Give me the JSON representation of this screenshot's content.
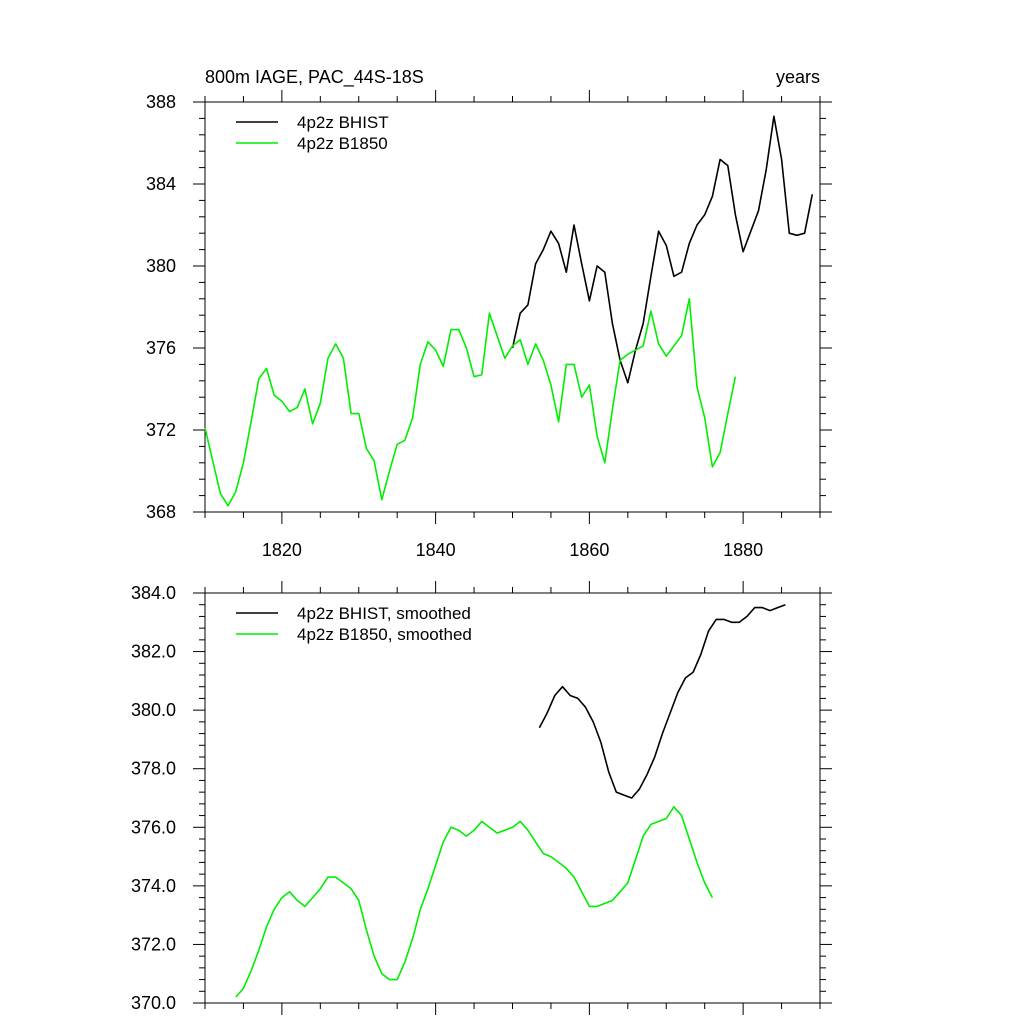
{
  "chart_data": [
    {
      "type": "line",
      "title_left": "800m IAGE, PAC_44S-18S",
      "title_right": "years",
      "xlim": [
        1810,
        1890
      ],
      "ylim": [
        368,
        388
      ],
      "x_major_ticks": [
        1820,
        1840,
        1860,
        1880
      ],
      "x_tick_labels": [
        "1820",
        "1840",
        "1860",
        "1880"
      ],
      "y_major_ticks": [
        368,
        372,
        376,
        380,
        384,
        388
      ],
      "y_tick_labels": [
        "368",
        "372",
        "376",
        "380",
        "384",
        "388"
      ],
      "legend_position": "top-left",
      "series": [
        {
          "name": "4p2z BHIST",
          "color": "#000000",
          "x": [
            1850,
            1851,
            1852,
            1853,
            1854,
            1855,
            1856,
            1857,
            1858,
            1859,
            1860,
            1861,
            1862,
            1863,
            1864,
            1865,
            1866,
            1867,
            1868,
            1869,
            1870,
            1871,
            1872,
            1873,
            1874,
            1875,
            1876,
            1877,
            1878,
            1879,
            1880,
            1881,
            1882,
            1883,
            1884,
            1885,
            1886,
            1887,
            1888,
            1889
          ],
          "y": [
            376.0,
            377.7,
            378.1,
            380.1,
            380.8,
            381.7,
            381.1,
            379.7,
            382.0,
            380.1,
            378.3,
            380.0,
            379.7,
            377.2,
            375.4,
            374.3,
            375.9,
            377.2,
            379.5,
            381.7,
            381.0,
            379.5,
            379.7,
            381.1,
            382.0,
            382.5,
            383.4,
            385.2,
            384.9,
            382.5,
            380.7,
            381.7,
            382.7,
            384.7,
            387.3,
            385.2,
            381.6,
            381.5,
            381.6,
            383.5
          ]
        },
        {
          "name": "4p2z B1850",
          "color": "#00ee00",
          "x": [
            1810,
            1811,
            1812,
            1813,
            1814,
            1815,
            1816,
            1817,
            1818,
            1819,
            1820,
            1821,
            1822,
            1823,
            1824,
            1825,
            1826,
            1827,
            1828,
            1829,
            1830,
            1831,
            1832,
            1833,
            1834,
            1835,
            1836,
            1837,
            1838,
            1839,
            1840,
            1841,
            1842,
            1843,
            1844,
            1845,
            1846,
            1847,
            1848,
            1849,
            1850,
            1851,
            1852,
            1853,
            1854,
            1855,
            1856,
            1857,
            1858,
            1859,
            1860,
            1861,
            1862,
            1863,
            1864,
            1865,
            1866,
            1867,
            1868,
            1869,
            1870,
            1871,
            1872,
            1873,
            1874,
            1875,
            1876,
            1877,
            1878,
            1879
          ],
          "y": [
            372.1,
            370.5,
            368.9,
            368.3,
            369.0,
            370.4,
            372.4,
            374.5,
            375.0,
            373.7,
            373.4,
            372.9,
            373.1,
            374.0,
            372.3,
            373.3,
            375.5,
            376.2,
            375.5,
            372.8,
            372.8,
            371.1,
            370.5,
            368.6,
            370.0,
            371.3,
            371.5,
            372.6,
            375.2,
            376.3,
            375.9,
            375.1,
            376.9,
            376.9,
            376.0,
            374.6,
            374.7,
            377.7,
            376.6,
            375.5,
            376.1,
            376.4,
            375.2,
            376.2,
            375.4,
            374.2,
            372.4,
            375.2,
            375.2,
            373.6,
            374.2,
            371.7,
            370.4,
            373.0,
            375.4,
            375.7,
            375.9,
            376.1,
            377.8,
            376.2,
            375.6,
            376.1,
            376.6,
            378.4,
            374.1,
            372.6,
            370.2,
            370.9,
            372.8,
            374.6
          ]
        }
      ]
    },
    {
      "type": "line",
      "xlim": [
        1810,
        1890
      ],
      "ylim": [
        370,
        384
      ],
      "x_major_ticks": [
        1820,
        1840,
        1860,
        1880
      ],
      "y_major_ticks": [
        370,
        372,
        374,
        376,
        378,
        380,
        382,
        384
      ],
      "y_tick_labels": [
        "370.0",
        "372.0",
        "374.0",
        "376.0",
        "378.0",
        "380.0",
        "382.0",
        "384.0"
      ],
      "legend_position": "top-left",
      "series": [
        {
          "name": "4p2z BHIST, smoothed",
          "color": "#000000",
          "x": [
            1853.5,
            1854.5,
            1855.5,
            1856.5,
            1857.5,
            1858.5,
            1859.5,
            1860.5,
            1861.5,
            1862.5,
            1863.5,
            1864.5,
            1865.5,
            1866.5,
            1867.5,
            1868.5,
            1869.5,
            1870.5,
            1871.5,
            1872.5,
            1873.5,
            1874.5,
            1875.5,
            1876.5,
            1877.5,
            1878.5,
            1879.5,
            1880.5,
            1881.5,
            1882.5,
            1883.5,
            1884.5,
            1885.5
          ],
          "y": [
            379.4,
            379.9,
            380.5,
            380.8,
            380.5,
            380.4,
            380.1,
            379.6,
            378.9,
            377.9,
            377.2,
            377.1,
            377.0,
            377.3,
            377.8,
            378.4,
            379.2,
            379.9,
            380.6,
            381.1,
            381.3,
            381.9,
            382.7,
            383.1,
            383.1,
            383.0,
            383.0,
            383.2,
            383.5,
            383.5,
            383.4,
            383.5,
            383.6
          ]
        },
        {
          "name": "4p2z B1850, smoothed",
          "color": "#00ee00",
          "x": [
            1814,
            1815,
            1816,
            1817,
            1818,
            1819,
            1820,
            1821,
            1822,
            1823,
            1824,
            1825,
            1826,
            1827,
            1828,
            1829,
            1830,
            1831,
            1832,
            1833,
            1834,
            1835,
            1836,
            1837,
            1838,
            1839,
            1840,
            1841,
            1842,
            1843,
            1844,
            1845,
            1846,
            1847,
            1848,
            1849,
            1850,
            1851,
            1852,
            1853,
            1854,
            1855,
            1856,
            1857,
            1858,
            1859,
            1860,
            1861,
            1862,
            1863,
            1864,
            1865,
            1866,
            1867,
            1868,
            1869,
            1870,
            1871,
            1872,
            1873,
            1874,
            1875,
            1876
          ],
          "y": [
            370.2,
            370.5,
            371.1,
            371.8,
            372.6,
            373.2,
            373.6,
            373.8,
            373.5,
            373.3,
            373.6,
            373.9,
            374.3,
            374.3,
            374.1,
            373.9,
            373.5,
            372.5,
            371.6,
            371.0,
            370.8,
            370.8,
            371.4,
            372.2,
            373.2,
            373.9,
            374.7,
            375.5,
            376.0,
            375.9,
            375.7,
            375.9,
            376.2,
            376.0,
            375.8,
            375.9,
            376.0,
            376.2,
            375.9,
            375.5,
            375.1,
            375.0,
            374.8,
            374.6,
            374.3,
            373.8,
            373.3,
            373.3,
            373.4,
            373.5,
            373.8,
            374.1,
            374.9,
            375.7,
            376.1,
            376.2,
            376.3,
            376.7,
            376.4,
            375.6,
            374.8,
            374.1,
            373.6
          ]
        }
      ]
    }
  ]
}
